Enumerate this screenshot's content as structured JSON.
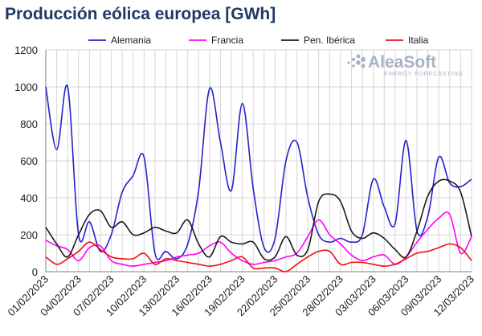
{
  "title": "Producción eólica europea [GWh]",
  "logo": {
    "name": "AleaSoft",
    "subtitle": "ENERGY FORECASTING"
  },
  "colors": {
    "title": "#1f3864",
    "grid": "#d6d6d6"
  },
  "chart_data": {
    "type": "line",
    "title": "Producción eólica europea [GWh]",
    "xlabel": "",
    "ylabel": "",
    "ylim": [
      0,
      1200
    ],
    "yticks": [
      0,
      200,
      400,
      600,
      800,
      1000,
      1200
    ],
    "grid": true,
    "legend_position": "top",
    "x": [
      "01/02/2023",
      "02/02/2023",
      "03/02/2023",
      "04/02/2023",
      "05/02/2023",
      "06/02/2023",
      "07/02/2023",
      "08/02/2023",
      "09/02/2023",
      "10/02/2023",
      "11/02/2023",
      "12/02/2023",
      "13/02/2023",
      "14/02/2023",
      "15/02/2023",
      "16/02/2023",
      "17/02/2023",
      "18/02/2023",
      "19/02/2023",
      "20/02/2023",
      "21/02/2023",
      "22/02/2023",
      "23/02/2023",
      "24/02/2023",
      "25/02/2023",
      "26/02/2023",
      "27/02/2023",
      "28/02/2023",
      "01/03/2023",
      "02/03/2023",
      "03/03/2023",
      "04/03/2023",
      "05/03/2023",
      "06/03/2023",
      "07/03/2023",
      "08/03/2023",
      "09/03/2023",
      "10/03/2023",
      "11/03/2023",
      "12/03/2023"
    ],
    "xtick_labels": [
      "01/02/2023",
      "04/02/2023",
      "07/02/2023",
      "10/02/2023",
      "13/02/2023",
      "16/02/2023",
      "19/02/2023",
      "22/02/2023",
      "25/02/2023",
      "28/02/2023",
      "03/03/2023",
      "06/03/2023",
      "09/03/2023",
      "12/03/2023"
    ],
    "series": [
      {
        "name": "Alemania",
        "color": "#2222cc",
        "values": [
          1000,
          660,
          1000,
          200,
          270,
          110,
          200,
          430,
          520,
          620,
          100,
          110,
          70,
          150,
          440,
          990,
          700,
          440,
          910,
          450,
          130,
          180,
          600,
          700,
          400,
          200,
          160,
          180,
          160,
          200,
          500,
          350,
          260,
          710,
          220,
          300,
          620,
          480,
          460,
          500
        ]
      },
      {
        "name": "Francia",
        "color": "#ff00ff",
        "values": [
          170,
          140,
          120,
          60,
          130,
          140,
          60,
          40,
          30,
          40,
          50,
          60,
          80,
          90,
          100,
          140,
          160,
          100,
          60,
          40,
          50,
          60,
          80,
          100,
          190,
          280,
          200,
          150,
          90,
          60,
          80,
          90,
          40,
          80,
          160,
          230,
          290,
          310,
          100,
          190
        ]
      },
      {
        "name": "Pen. Ibérica",
        "color": "#1a1a1a",
        "values": [
          240,
          150,
          80,
          200,
          310,
          330,
          240,
          270,
          200,
          210,
          240,
          220,
          210,
          280,
          150,
          80,
          190,
          160,
          150,
          160,
          70,
          80,
          190,
          90,
          120,
          380,
          420,
          380,
          220,
          180,
          210,
          180,
          120,
          80,
          220,
          410,
          490,
          490,
          430,
          190
        ]
      },
      {
        "name": "Italia",
        "color": "#ee1111",
        "values": [
          80,
          40,
          70,
          110,
          160,
          120,
          80,
          70,
          70,
          100,
          40,
          70,
          60,
          50,
          40,
          30,
          40,
          60,
          80,
          20,
          20,
          20,
          0,
          40,
          80,
          110,
          110,
          40,
          50,
          50,
          40,
          30,
          40,
          70,
          100,
          110,
          130,
          150,
          130,
          60
        ]
      }
    ]
  }
}
